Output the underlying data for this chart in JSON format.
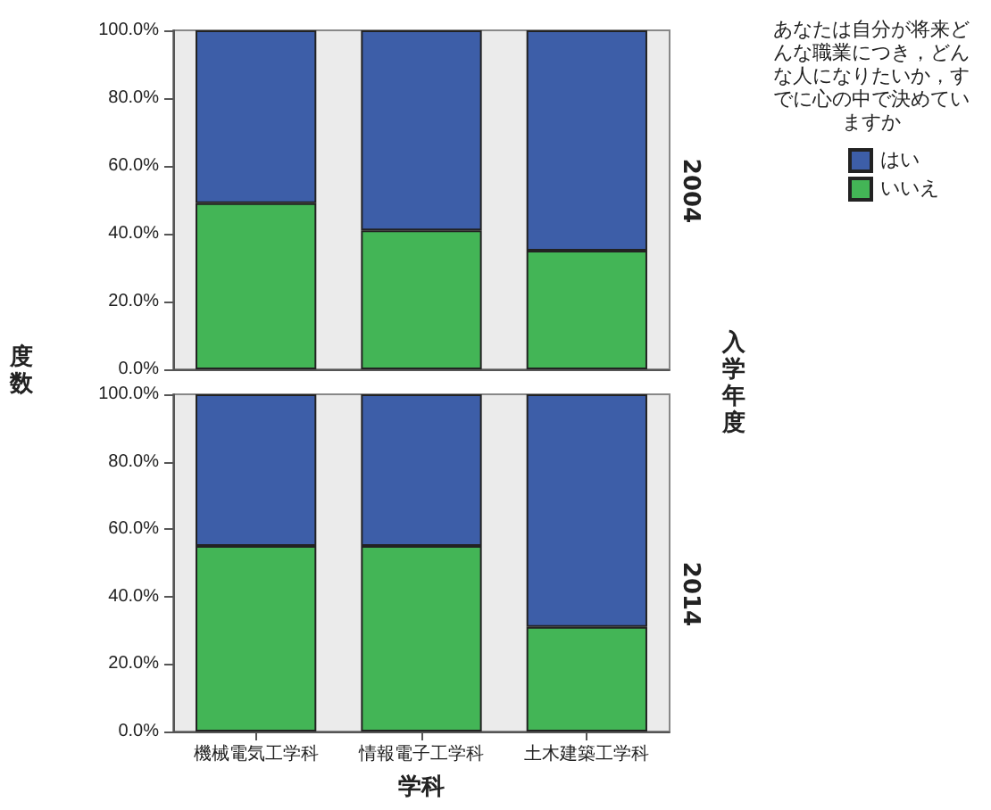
{
  "chart_data": [
    {
      "type": "bar",
      "title": "2004",
      "ylabel": "度数",
      "y2label": "入学年度",
      "legend_title": "あなたは自分が将来どんな職業につき，どんな人になりたいか，すでに心の中で決めていますか",
      "legend": "right",
      "stacked": true,
      "tick_labels": "y",
      "categories": [
        null,
        null,
        null
      ],
      "series": [
        {
          "name": "いいえ",
          "color": "#43b556",
          "values": [
            49,
            41,
            35
          ]
        },
        {
          "name": "はい",
          "color": "#3d5ea8",
          "values": [
            51,
            59,
            65
          ]
        }
      ],
      "ylim": [
        0,
        100
      ],
      "yticks": [
        {
          "value": 0,
          "label": "0.0%"
        },
        {
          "value": 20,
          "label": "20.0%"
        },
        {
          "value": 40,
          "label": "40.0%"
        },
        {
          "value": 60,
          "label": "60.0%"
        },
        {
          "value": 80,
          "label": "80.0%"
        },
        {
          "value": 100,
          "label": "100.0%"
        }
      ]
    },
    {
      "type": "bar",
      "title": "2014",
      "xlabel": "学科",
      "stacked": true,
      "categories": [
        "機械電気工学科",
        "情報電子工学科",
        "土木建築工学科"
      ],
      "series": [
        {
          "color": "#43b556",
          "values": [
            55,
            55,
            31
          ]
        },
        {
          "color": "#3d5ea8",
          "values": [
            45,
            45,
            69
          ]
        }
      ],
      "ylim": [
        0,
        100
      ],
      "yticks": [
        {
          "value": 0,
          "label": "0.0%"
        },
        {
          "value": 20,
          "label": "20.0%"
        },
        {
          "value": 40,
          "label": "40.0%"
        },
        {
          "value": 60,
          "label": "60.0%"
        },
        {
          "value": 80,
          "label": "80.0%"
        },
        {
          "value": 100,
          "label": "100.0%"
        }
      ]
    }
  ]
}
